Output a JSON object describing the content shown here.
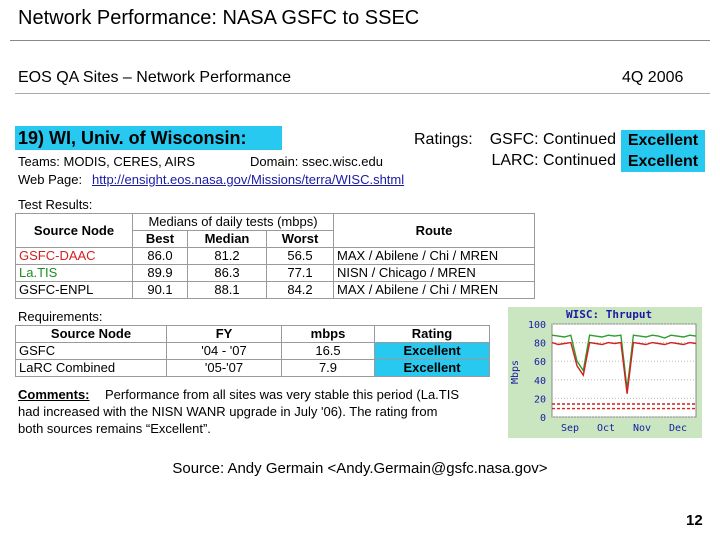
{
  "header": {
    "title": "Network Performance: NASA GSFC to SSEC"
  },
  "subheader": {
    "left": "EOS QA Sites – Network Performance",
    "right": "4Q 2006"
  },
  "site": {
    "heading": "19)  WI, Univ. of Wisconsin:",
    "ratings_label": "Ratings:",
    "ratings": [
      {
        "source": "GSFC: Continued",
        "rating": "Excellent"
      },
      {
        "source": "LARC: Continued",
        "rating": "Excellent"
      }
    ],
    "teams": "Teams: MODIS, CERES, AIRS",
    "domain": "Domain: ssec.wisc.edu",
    "web_label": "Web Page:",
    "web_url": "http://ensight.eos.nasa.gov/Missions/terra/WISC.shtml"
  },
  "test_results": {
    "label": "Test Results:",
    "header": {
      "source": "Source Node",
      "group": "Medians of daily tests (mbps)",
      "best": "Best",
      "median": "Median",
      "worst": "Worst",
      "route": "Route"
    },
    "rows": [
      [
        "GSFC-DAAC",
        "86.0",
        "81.2",
        "56.5",
        "MAX / Abilene / Chi / MREN"
      ],
      [
        "La.TIS",
        "89.9",
        "86.3",
        "77.1",
        "NISN / Chicago / MREN"
      ],
      [
        "GSFC-ENPL",
        "90.1",
        "88.1",
        "84.2",
        "MAX / Abilene / Chi / MREN"
      ]
    ]
  },
  "requirements": {
    "label": "Requirements:",
    "header": [
      "Source Node",
      "FY",
      "mbps",
      "Rating"
    ],
    "rows": [
      [
        "GSFC",
        "'04 - '07",
        "16.5",
        "Excellent"
      ],
      [
        "LaRC Combined",
        "'05-'07",
        "7.9",
        "Excellent"
      ]
    ]
  },
  "comments": {
    "label": "Comments:",
    "lines": [
      "Performance from all sites was very stable this period (La.TIS",
      "had increased with the NISN WANR upgrade in July '06).  The rating from",
      "both sources remains “Excellent”."
    ]
  },
  "chart": {
    "type": "line",
    "title": "WISC: Thruput",
    "ylabel": "Mbps",
    "categories": [
      "Sep",
      "Oct",
      "Nov",
      "Dec"
    ],
    "ylim": [
      0,
      100
    ],
    "yticks": [
      0,
      20,
      40,
      60,
      80,
      100
    ],
    "series": [
      {
        "color": "#2e9e2e",
        "values": [
          88,
          87,
          86,
          88,
          60,
          50,
          88,
          87,
          86,
          88,
          87,
          88,
          30,
          88,
          87,
          86,
          88,
          87,
          85,
          88,
          87,
          86,
          88,
          87
        ]
      },
      {
        "color": "#d42020",
        "values": [
          80,
          78,
          79,
          80,
          55,
          45,
          80,
          79,
          78,
          80,
          79,
          80,
          25,
          80,
          79,
          78,
          80,
          79,
          78,
          80,
          79,
          78,
          80,
          79
        ]
      },
      {
        "color": "#d42020",
        "dashed": true,
        "values": [
          14,
          14,
          14,
          14,
          14,
          14,
          14,
          14,
          14,
          14,
          14,
          14,
          14,
          14,
          14,
          14,
          14,
          14,
          14,
          14,
          14,
          14,
          14,
          14
        ]
      },
      {
        "color": "#d42020",
        "dashed": true,
        "values": [
          9,
          9,
          9,
          9,
          9,
          9,
          9,
          9,
          9,
          9,
          9,
          9,
          9,
          9,
          9,
          9,
          9,
          9,
          9,
          9,
          9,
          9,
          9,
          9
        ]
      }
    ]
  },
  "source": "Source: Andy Germain <Andy.Germain@gsfc.nasa.gov>",
  "page_number": "12"
}
